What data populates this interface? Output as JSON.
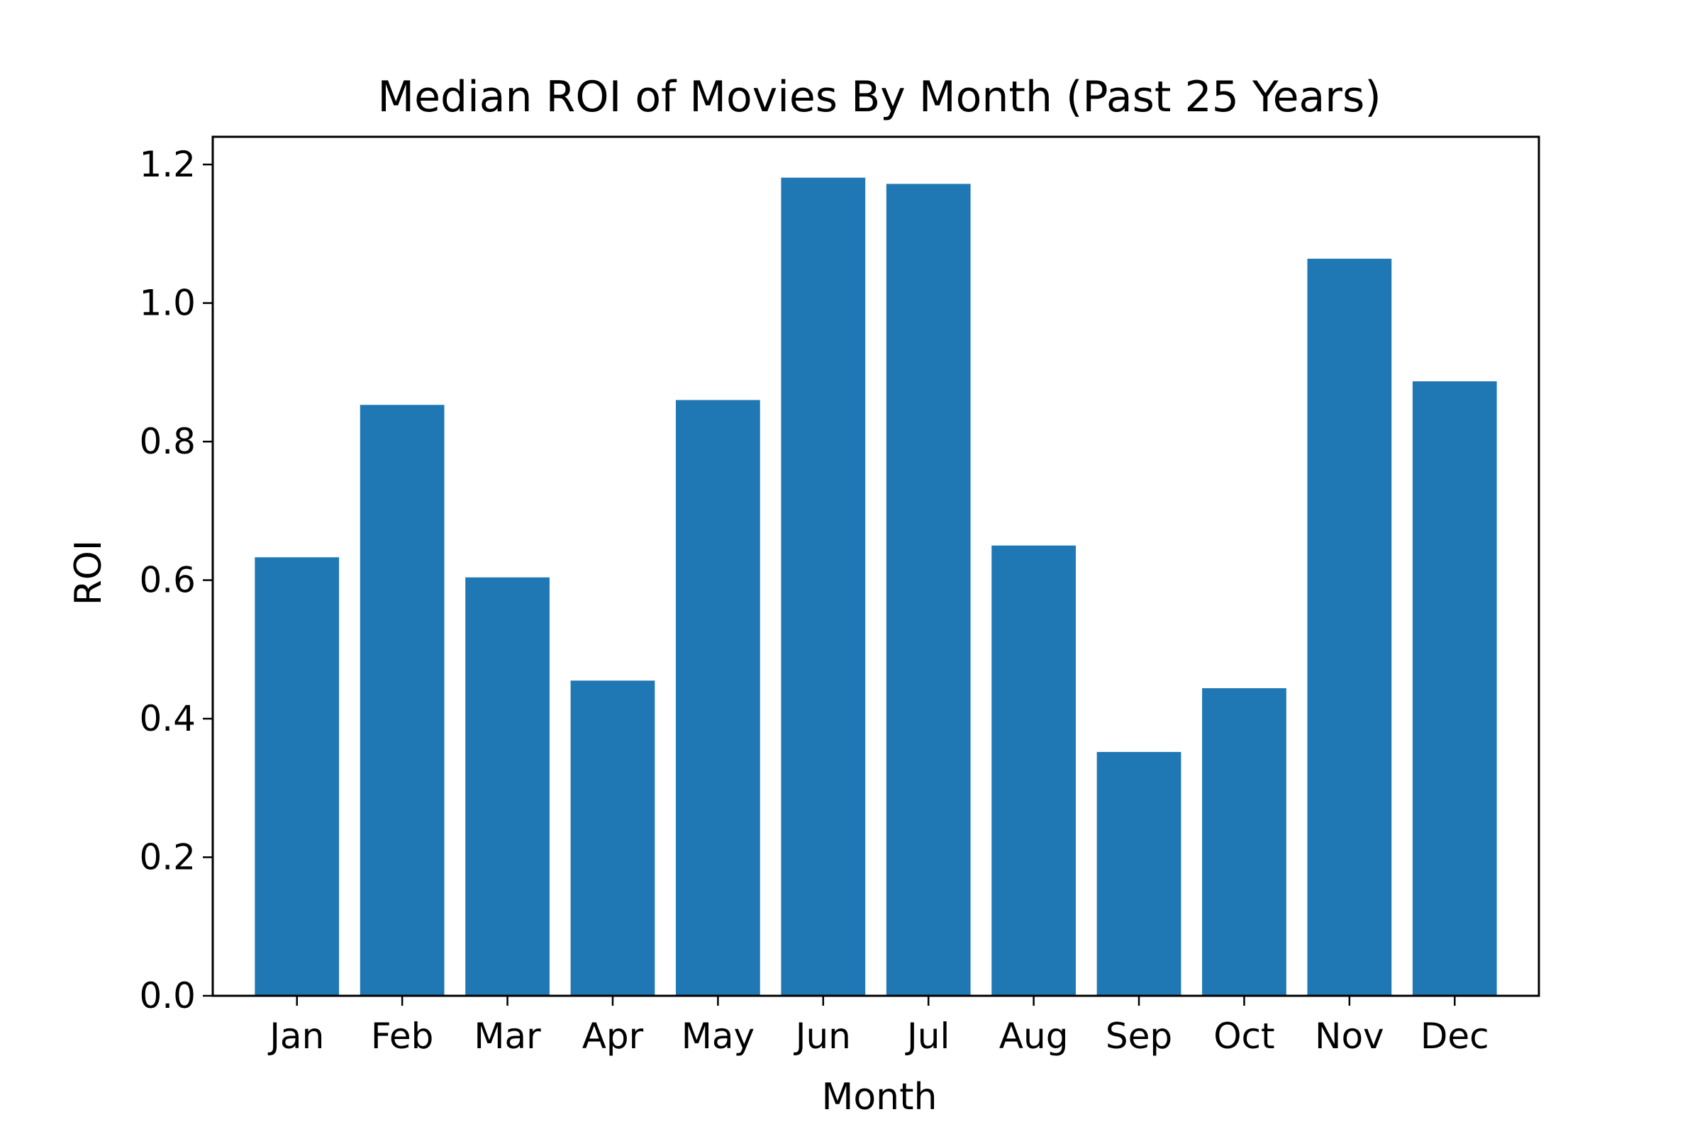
{
  "chart_data": {
    "type": "bar",
    "title": "Median ROI of Movies By Month (Past 25 Years)",
    "xlabel": "Month",
    "ylabel": "ROI",
    "categories": [
      "Jan",
      "Feb",
      "Mar",
      "Apr",
      "May",
      "Jun",
      "Jul",
      "Aug",
      "Sep",
      "Oct",
      "Nov",
      "Dec"
    ],
    "values": [
      0.633,
      0.853,
      0.604,
      0.455,
      0.86,
      1.181,
      1.172,
      0.65,
      0.352,
      0.444,
      1.064,
      0.887
    ],
    "ylim": [
      0,
      1.24
    ],
    "yticks": [
      "0.0",
      "0.2",
      "0.4",
      "0.6",
      "0.8",
      "1.0",
      "1.2"
    ],
    "bar_color": "#1f77b4",
    "grid": false,
    "legend": "none"
  }
}
